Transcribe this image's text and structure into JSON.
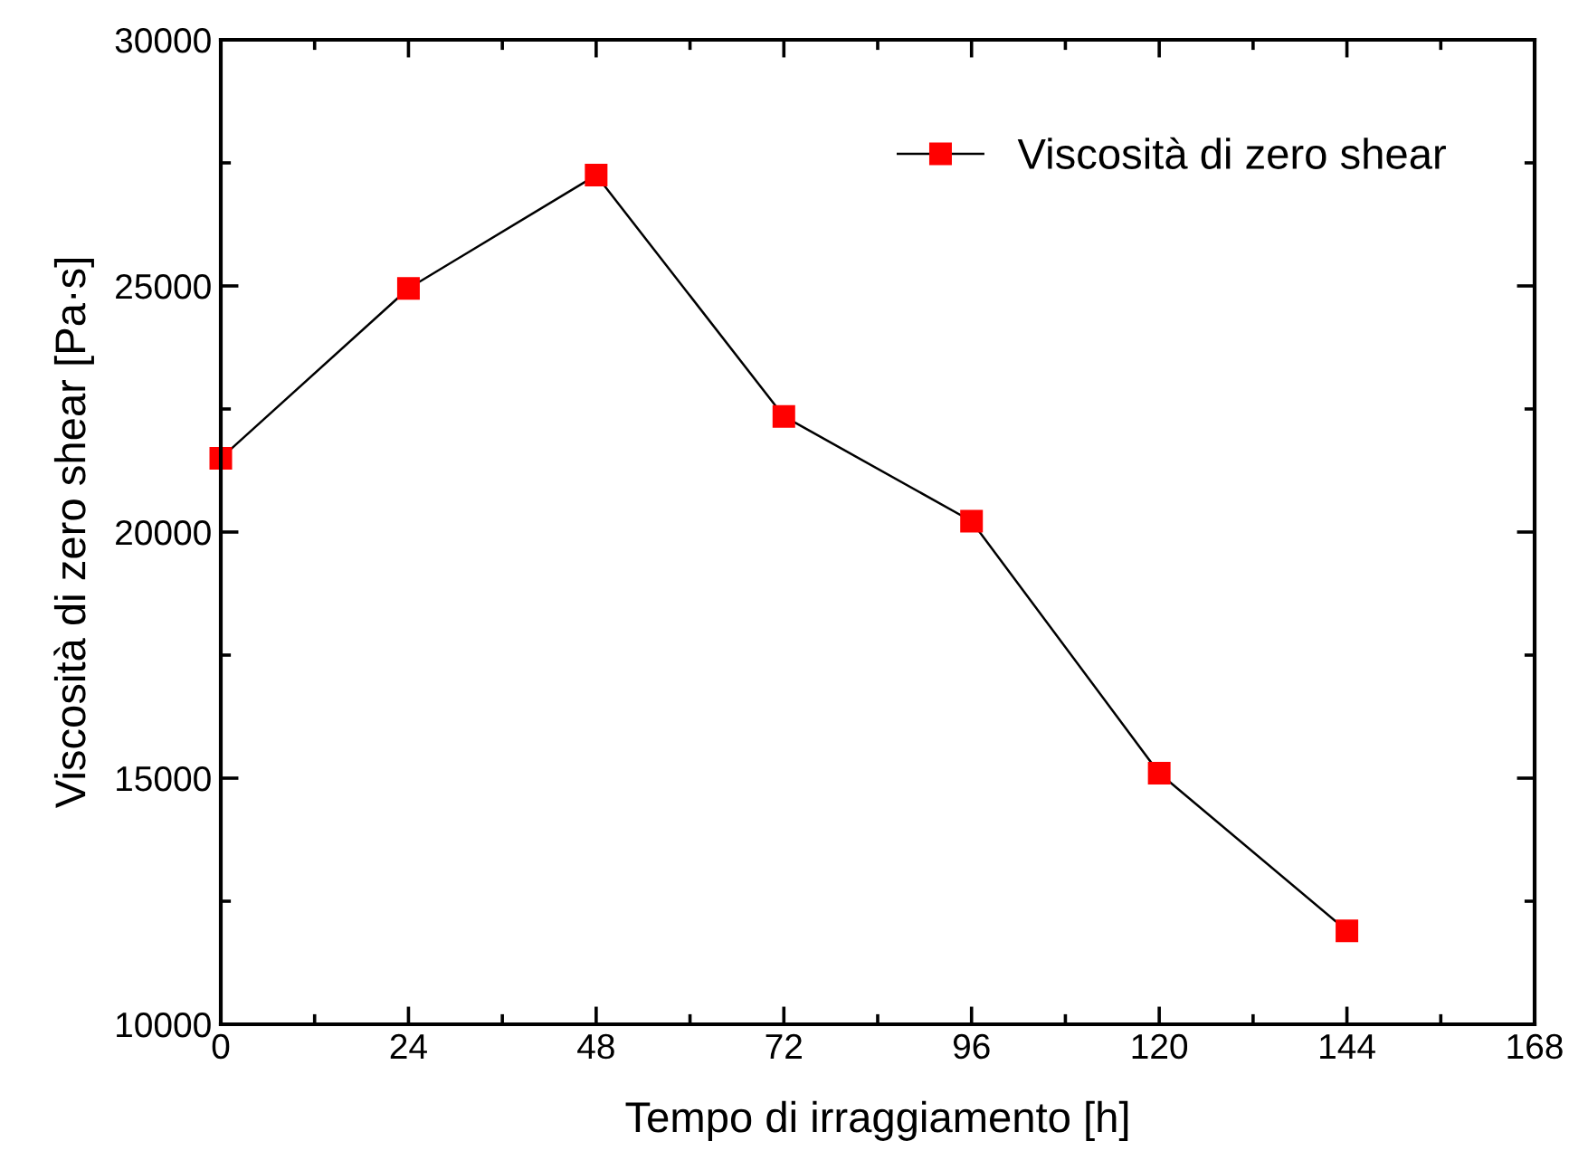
{
  "chart_data": {
    "type": "line",
    "xlabel": "Tempo di irraggiamento [h]",
    "ylabel": "Viscosità di zero shear [Pa·s]",
    "x": [
      0,
      24,
      48,
      72,
      96,
      120,
      144
    ],
    "series": [
      {
        "name": "Viscosità di zero shear",
        "color": "#ff0000",
        "values": [
          21500,
          24950,
          27250,
          22350,
          20220,
          15100,
          11900
        ]
      }
    ],
    "xlim": [
      0,
      168
    ],
    "xticks": [
      0,
      {
        "value": 12,
        "label": null
      },
      24,
      {
        "value": 36,
        "label": null
      },
      48,
      {
        "value": 60,
        "label": null
      },
      72,
      {
        "value": 84,
        "label": null
      },
      96,
      {
        "value": 108,
        "label": null
      },
      120,
      {
        "value": 132,
        "label": null
      },
      144,
      {
        "value": 156,
        "label": null
      },
      168
    ],
    "ylim": [
      10000,
      30000
    ],
    "yticks": [
      10000,
      {
        "value": 12500,
        "label": null
      },
      15000,
      {
        "value": 17500,
        "label": null
      },
      20000,
      {
        "value": 22500,
        "label": null
      },
      25000,
      {
        "value": 27500,
        "label": null
      },
      30000
    ],
    "marker": "square",
    "line_style": "solid",
    "grid": false,
    "legend": "top right"
  }
}
